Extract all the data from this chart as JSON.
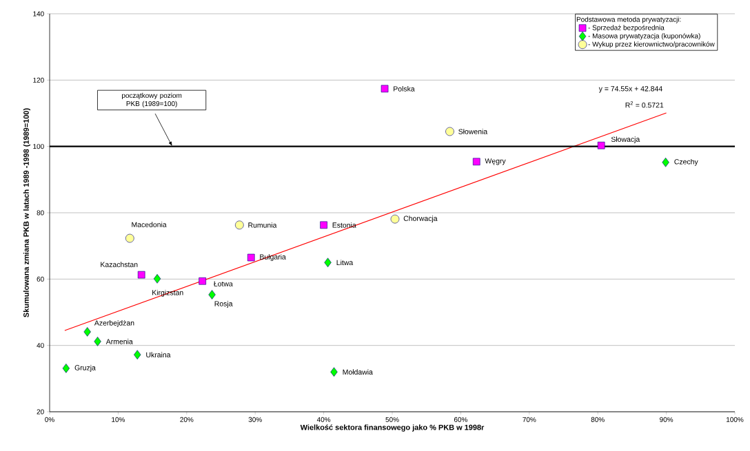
{
  "chart_data": {
    "type": "scatter",
    "xlabel": "Wielkość sektora finansowego jako % PKB w 1998r",
    "ylabel": "Skumulowana zmiana PKB w latach 1989 -1998 (1989=100)",
    "legend_title": "Podstawowa metoda prywatyzacji:",
    "legend": "top right",
    "grid": "y",
    "xlim": [
      0,
      100
    ],
    "ylim": [
      20,
      140
    ],
    "xticks": [
      {
        "value": 0,
        "label": "0%"
      },
      {
        "value": 10,
        "label": "10%"
      },
      {
        "value": 20,
        "label": "20%"
      },
      {
        "value": 30,
        "label": "30%"
      },
      {
        "value": 40,
        "label": "40%"
      },
      {
        "value": 50,
        "label": "50%"
      },
      {
        "value": 60,
        "label": "60%"
      },
      {
        "value": 70,
        "label": "70%"
      },
      {
        "value": 80,
        "label": "80%"
      },
      {
        "value": 90,
        "label": "90%"
      },
      {
        "value": 100,
        "label": "100%"
      }
    ],
    "yticks": [
      20,
      40,
      60,
      80,
      100,
      120,
      140
    ],
    "series": [
      {
        "name": "- Sprzedaż bezpośrednia",
        "marker": "square",
        "color": "#ff00ff",
        "x": [
          48.9,
          80.5,
          62.3,
          40.0,
          29.4,
          13.4,
          22.3
        ],
        "values": [
          117.4,
          100.3,
          95.4,
          76.3,
          66.5,
          61.3,
          59.4
        ]
      },
      {
        "name": "- Masowa prywatyzacja (kuponówka)",
        "marker": "diamond",
        "color": "#00ff00",
        "x": [
          89.9,
          40.6,
          15.7,
          23.7,
          5.5,
          7.0,
          12.8,
          2.4,
          41.5
        ],
        "values": [
          95.2,
          65.0,
          60.1,
          55.3,
          44.1,
          41.2,
          37.2,
          33.1,
          32.0
        ]
      },
      {
        "name": "- Wykup przez kierownictwo/pracowników",
        "marker": "circle",
        "color": "#ffff99",
        "x": [
          58.4,
          50.4,
          27.7,
          11.7
        ],
        "values": [
          104.5,
          78.1,
          76.3,
          72.3
        ]
      },
      {
        "type": "line",
        "marker": "none",
        "color": "#ff0000",
        "x": [
          2.2,
          90.0
        ],
        "values": [
          44.5,
          110.1
        ]
      }
    ],
    "ref_lines": [
      {
        "axis": "y",
        "value": 100,
        "label": "początkowy poziom PKB (1989=100)",
        "color": "#000000",
        "line_style": "solid"
      }
    ],
    "annotations": [
      {
        "text": "Polska",
        "x": 48.9,
        "y": 117.4
      },
      {
        "text": "Słowacja",
        "x": 80.5,
        "y": 100.3
      },
      {
        "text": "Węgry",
        "x": 62.3,
        "y": 95.4
      },
      {
        "text": "Estonia",
        "x": 40.0,
        "y": 76.3
      },
      {
        "text": "Bułgaria",
        "x": 29.4,
        "y": 66.5
      },
      {
        "text": "Kazachstan",
        "x": 13.4,
        "y": 61.3
      },
      {
        "text": "Łotwa",
        "x": 22.3,
        "y": 59.4
      },
      {
        "text": "Czechy",
        "x": 89.9,
        "y": 95.2
      },
      {
        "text": "Litwa",
        "x": 40.6,
        "y": 65.0
      },
      {
        "text": "Kirgizstan",
        "x": 15.7,
        "y": 60.1
      },
      {
        "text": "Rosja",
        "x": 23.7,
        "y": 55.3
      },
      {
        "text": "Azerbejdżan",
        "x": 5.5,
        "y": 44.1
      },
      {
        "text": "Armenia",
        "x": 7.0,
        "y": 41.2
      },
      {
        "text": "Ukraina",
        "x": 12.8,
        "y": 37.2
      },
      {
        "text": "Gruzja",
        "x": 2.4,
        "y": 33.1
      },
      {
        "text": "Mołdawia",
        "x": 41.5,
        "y": 32.0
      },
      {
        "text": "Słowenia",
        "x": 58.4,
        "y": 104.5
      },
      {
        "text": "Chorwacja",
        "x": 50.4,
        "y": 78.1
      },
      {
        "text": "Rumunia",
        "x": 27.7,
        "y": 76.3
      },
      {
        "text": "Macedonia",
        "x": 11.7,
        "y": 72.3
      },
      "y = 74.55x + 42.844",
      "R$^{2}$ = 0.5721"
    ]
  }
}
